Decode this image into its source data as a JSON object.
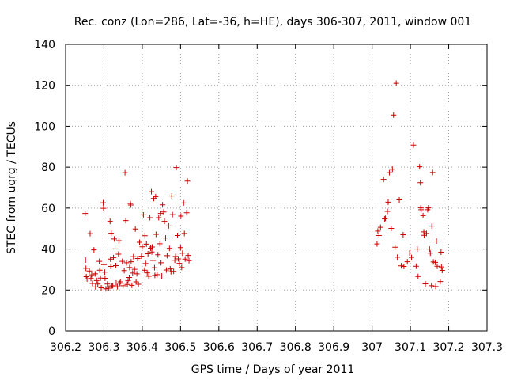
{
  "chart_data": {
    "type": "scatter",
    "title": "Rec. conz (Lon=286, Lat=-36, h=HE), days 306-307, 2011, window 001",
    "xlabel": "GPS time / Days of year 2011",
    "ylabel": "STEC from uqrg / TECUs",
    "xlim": [
      306.2,
      307.3
    ],
    "ylim": [
      0,
      140
    ],
    "x_ticks": [
      306.2,
      306.3,
      306.4,
      306.5,
      306.6,
      306.7,
      306.8,
      306.9,
      307.0,
      307.1,
      307.2,
      307.3
    ],
    "x_tick_labels": [
      "306.2",
      "306.3",
      "306.4",
      "306.5",
      "306.6",
      "306.7",
      "306.8",
      "306.9",
      "307",
      "307.1",
      "307.2",
      "307.3"
    ],
    "y_ticks": [
      0,
      20,
      40,
      60,
      80,
      100,
      120,
      140
    ],
    "y_tick_labels": [
      "0",
      "20",
      "40",
      "60",
      "80",
      "100",
      "120",
      "140"
    ],
    "grid": true,
    "marker": "+",
    "color": "#cc0000",
    "series": [
      {
        "name": "STEC",
        "points": [
          [
            306.251,
            57.4
          ],
          [
            306.252,
            34.6
          ],
          [
            306.253,
            30.6
          ],
          [
            306.254,
            26.5
          ],
          [
            306.256,
            25.4
          ],
          [
            306.262,
            29.3
          ],
          [
            306.264,
            47.5
          ],
          [
            306.266,
            25.6
          ],
          [
            306.268,
            27.4
          ],
          [
            306.27,
            23.2
          ],
          [
            306.274,
            39.6
          ],
          [
            306.277,
            27.9
          ],
          [
            306.278,
            21.5
          ],
          [
            306.281,
            24.6
          ],
          [
            306.284,
            22.9
          ],
          [
            306.288,
            34.0
          ],
          [
            306.289,
            29.7
          ],
          [
            306.291,
            25.8
          ],
          [
            306.293,
            21.1
          ],
          [
            306.298,
            62.6
          ],
          [
            306.299,
            59.9
          ],
          [
            306.3,
            32.4
          ],
          [
            306.302,
            28.7
          ],
          [
            306.303,
            25.7
          ],
          [
            306.305,
            20.6
          ],
          [
            306.309,
            22.9
          ],
          [
            306.313,
            20.9
          ],
          [
            306.316,
            53.5
          ],
          [
            306.317,
            35.1
          ],
          [
            306.318,
            31.5
          ],
          [
            306.319,
            47.7
          ],
          [
            306.321,
            22.0
          ],
          [
            306.323,
            22.1
          ],
          [
            306.325,
            35.8
          ],
          [
            306.327,
            44.9
          ],
          [
            306.329,
            40.1
          ],
          [
            306.331,
            31.9
          ],
          [
            306.332,
            23.4
          ],
          [
            306.335,
            21.6
          ],
          [
            306.338,
            37.5
          ],
          [
            306.339,
            44.1
          ],
          [
            306.341,
            23.3
          ],
          [
            306.343,
            24.0
          ],
          [
            306.348,
            34.0
          ],
          [
            306.35,
            22.1
          ],
          [
            306.353,
            29.5
          ],
          [
            306.355,
            77.3
          ],
          [
            306.357,
            53.9
          ],
          [
            306.359,
            33.3
          ],
          [
            306.361,
            22.7
          ],
          [
            306.363,
            24.5
          ],
          [
            306.366,
            26.1
          ],
          [
            306.367,
            31.0
          ],
          [
            306.369,
            62.2
          ],
          [
            306.37,
            61.5
          ],
          [
            306.371,
            33.8
          ],
          [
            306.373,
            22.3
          ],
          [
            306.375,
            28.3
          ],
          [
            306.377,
            36.3
          ],
          [
            306.38,
            30.1
          ],
          [
            306.382,
            49.8
          ],
          [
            306.384,
            24.0
          ],
          [
            306.386,
            27.9
          ],
          [
            306.388,
            35.4
          ],
          [
            306.39,
            22.8
          ],
          [
            306.393,
            43.3
          ],
          [
            306.398,
            36.5
          ],
          [
            306.4,
            41.1
          ],
          [
            306.403,
            56.7
          ],
          [
            306.406,
            29.7
          ],
          [
            306.407,
            46.5
          ],
          [
            306.409,
            32.9
          ],
          [
            306.411,
            42.4
          ],
          [
            306.413,
            28.4
          ],
          [
            306.415,
            37.7
          ],
          [
            306.417,
            26.7
          ],
          [
            306.42,
            55.3
          ],
          [
            306.422,
            40.4
          ],
          [
            306.424,
            68.0
          ],
          [
            306.425,
            38.6
          ],
          [
            306.426,
            41.0
          ],
          [
            306.428,
            34.4
          ],
          [
            306.43,
            64.7
          ],
          [
            306.432,
            30.9
          ],
          [
            306.433,
            27.1
          ],
          [
            306.435,
            65.6
          ],
          [
            306.436,
            47.2
          ],
          [
            306.439,
            27.5
          ],
          [
            306.441,
            37.2
          ],
          [
            306.443,
            55.3
          ],
          [
            306.446,
            42.6
          ],
          [
            306.448,
            57.4
          ],
          [
            306.449,
            33.3
          ],
          [
            306.451,
            26.9
          ],
          [
            306.453,
            61.6
          ],
          [
            306.456,
            58.1
          ],
          [
            306.458,
            53.5
          ],
          [
            306.461,
            45.4
          ],
          [
            306.463,
            29.8
          ],
          [
            306.465,
            36.8
          ],
          [
            306.469,
            51.3
          ],
          [
            306.471,
            40.3
          ],
          [
            306.473,
            30.4
          ],
          [
            306.475,
            28.9
          ],
          [
            306.477,
            65.9
          ],
          [
            306.479,
            56.8
          ],
          [
            306.482,
            29.1
          ],
          [
            306.485,
            34.5
          ],
          [
            306.487,
            36.4
          ],
          [
            306.489,
            79.8
          ],
          [
            306.492,
            46.6
          ],
          [
            306.494,
            35.2
          ],
          [
            306.497,
            33.0
          ],
          [
            306.5,
            40.7
          ],
          [
            306.501,
            56.1
          ],
          [
            306.503,
            31.0
          ],
          [
            306.505,
            38.0
          ],
          [
            306.508,
            62.5
          ],
          [
            306.51,
            47.6
          ],
          [
            306.512,
            35.1
          ],
          [
            306.516,
            57.7
          ],
          [
            306.518,
            73.2
          ],
          [
            306.52,
            36.9
          ],
          [
            306.522,
            34.3
          ],
          [
            307.013,
            42.5
          ],
          [
            307.015,
            48.8
          ],
          [
            307.018,
            46.6
          ],
          [
            307.022,
            50.6
          ],
          [
            307.03,
            74.0
          ],
          [
            307.033,
            54.7
          ],
          [
            307.035,
            55.0
          ],
          [
            307.04,
            58.4
          ],
          [
            307.042,
            62.9
          ],
          [
            307.045,
            77.3
          ],
          [
            307.05,
            50.1
          ],
          [
            307.053,
            79.0
          ],
          [
            307.056,
            105.5
          ],
          [
            307.06,
            40.9
          ],
          [
            307.063,
            121.0
          ],
          [
            307.066,
            36.0
          ],
          [
            307.071,
            64.0
          ],
          [
            307.076,
            31.8
          ],
          [
            307.081,
            47.0
          ],
          [
            307.083,
            31.5
          ],
          [
            307.092,
            33.8
          ],
          [
            307.098,
            38.1
          ],
          [
            307.103,
            35.9
          ],
          [
            307.108,
            90.8
          ],
          [
            307.115,
            31.6
          ],
          [
            307.118,
            40.0
          ],
          [
            307.12,
            26.6
          ],
          [
            307.124,
            80.2
          ],
          [
            307.126,
            72.4
          ],
          [
            307.127,
            60.1
          ],
          [
            307.128,
            59.2
          ],
          [
            307.133,
            56.3
          ],
          [
            307.135,
            48.4
          ],
          [
            307.136,
            46.7
          ],
          [
            307.139,
            23.0
          ],
          [
            307.142,
            47.6
          ],
          [
            307.145,
            59.2
          ],
          [
            307.147,
            60.1
          ],
          [
            307.15,
            40.0
          ],
          [
            307.152,
            38.0
          ],
          [
            307.155,
            22.1
          ],
          [
            307.156,
            51.2
          ],
          [
            307.158,
            77.4
          ],
          [
            307.16,
            33.7
          ],
          [
            307.165,
            33.5
          ],
          [
            307.166,
            21.7
          ],
          [
            307.168,
            43.9
          ],
          [
            307.17,
            31.6
          ],
          [
            307.178,
            24.1
          ],
          [
            307.18,
            38.5
          ],
          [
            307.181,
            31.3
          ],
          [
            307.183,
            29.6
          ]
        ]
      }
    ]
  }
}
